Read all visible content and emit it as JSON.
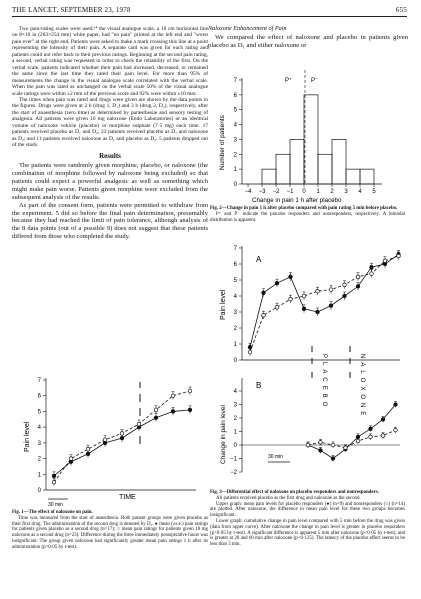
{
  "header": {
    "journal": "THE LANCET, SEPTEMBER 23, 1978",
    "page_number": "655"
  },
  "left_column": {
    "paragraphs": [
      "Two pain-rating scales were used:¹⁴ the visual analogue scale, a 10 cm horizontal line on 8×10 in (203×254 mm) white paper, had \"no pain\" printed at the left end and \"worst pain ever\" at the right end. Patients were asked to make a mark crossing this line at a point representing the intensity of their pain. A separate card was given for each rating and patients could not refer back to their previous ratings. Beginning at the second pain rating, a second, verbal rating was requested in order to check the reliability of the first. On the verbal scale, patients indicated whether their pain had increased, decreased, or remained the same since the last time they rated their pain level. For more than 95% of measurements the change in the visual analogue scale correlated with the verbal scale. When the pain was rated as unchanged on the verbal scale 50% of the visual analogue scale ratings were within ±2 mm of the previous score and 92% were within ±10 mm.",
      "The times when pain was rated and drugs were given are shown by the data points in the figures. Drugs were given at 2 h (drug 1, D₁) and 3 h (drug 2, D₂), respectively, after the start of anaesthesia (zero time) as determined by paræsthesiæ and sensory testing of analgesia. All patients were given 10 mg naloxone (Endo Laboratories) or an identical volume of naloxone vehicle (placebo) or morphine sulphate (7·5 mg) each time. 17 patients received placebo as D₁ and D₂; 23 patients received placebo as D₁ and naloxone as D₂; and 11 patients received naloxone as D₁ and placebo as D₂. 5 patients dropped out of the study."
    ],
    "results_heading": "Results",
    "results_paragraphs": [
      "The patients were randomly given morphine, placebo, or naloxone (the combination of morphine followed by naloxone being excluded) so that patients could expect a powerful analgesic as well as something which might make pain worse. Patients given morphine were excluded from the subsequent analysis of the results.",
      "As part of the consent form, patients were permitted to withdraw from the experiment. 5 did so before the final pain determination, presumably because they had reached the limit of pain tolerance, although analysis of the 8 data points (out of a possible 9) does not suggest that these patients differed from those who completed the study."
    ]
  },
  "right_column": {
    "subheading": "Naloxone Enhancement of Pain",
    "lead_paragraph": "We compared the effect of naloxone and placebo in patients given placebo as D₁ and either naloxone or"
  },
  "fig1": {
    "ylabel": "Pain level",
    "xlabel": "TIME",
    "scale_label": "30 min",
    "caption_title": "Fig. 1—The effect of naloxone on pain.",
    "caption_text": "Time was measured from the start of anaesthesia. Both patient groups were given placebo as their first drug. The administration of the second drug is denoted by D₂. ● mean (±s.e.) pain ratings for patients given placebo as a second drug (n=17); ○ mean pain ratings for patients given 10 mg naloxone as a second drug (n=23). Difference during the three immediately postoperative hours was insignificant. The group given naloxone had significantly greater mean pain ratings 1 h after its administration (p<0·05 by t-test).",
    "chart_data": {
      "type": "line",
      "ylim": [
        0,
        7
      ],
      "yticks": [
        0,
        1,
        2,
        3,
        4,
        5,
        6,
        7
      ],
      "series": [
        {
          "marker": "filled",
          "style": "solid",
          "values": [
            0.9,
            1.8,
            2.3,
            3.0,
            3.3,
            4.0,
            4.6,
            5.0,
            5.1
          ]
        },
        {
          "marker": "open",
          "style": "dashed",
          "values": [
            0.5,
            2.0,
            2.6,
            3.2,
            3.6,
            4.2,
            5.1,
            6.0,
            6.3
          ]
        }
      ]
    }
  },
  "fig2": {
    "ylabel": "Number of patients",
    "xlabel": "Change in pain 1 h after placebo",
    "p_plus_label": "P⁺",
    "p_minus_label": "P⁻",
    "caption_title": "Fig. 2—Change in pain 1 h after placebo compared with pain rating 5 min before placebo.",
    "caption_text": "P⁺ and P⁻ indicate the placebo responders and nonresponders, respectively. A bimodal distribution is apparent.",
    "chart_data": {
      "type": "bar",
      "categories": [
        "-4",
        "-3",
        "-2",
        "-1",
        "0",
        "1",
        "2",
        "3",
        "4",
        "5"
      ],
      "xticks": [
        "-4",
        "-3",
        "-2",
        "-1",
        "0",
        "1",
        "2",
        "3",
        "4",
        "5"
      ],
      "values": [
        0,
        1,
        2,
        3,
        6,
        2,
        3,
        1,
        1,
        0
      ],
      "ylim": [
        0,
        7
      ],
      "yticks": [
        0,
        1,
        2,
        3,
        4,
        5,
        6,
        7
      ]
    }
  },
  "fig3": {
    "panel_a": "A",
    "panel_b": "B",
    "ylabel_a": "Pain level",
    "ylabel_b": "Change in pain level",
    "scale_label": "30 min",
    "placebo_label": "PLACEBO",
    "naloxone_label": "NALOXONE",
    "caption_title": "Fig. 3—Differential effect of naloxone on placebo responders and nonresponders.",
    "caption_lines": [
      "All patients received placebo as the first drug and naloxone as the second.",
      "Upper graph: mean pain levels for placebo responders (●) (n=9) and nonresponders (○) (n=14) are plotted. After naloxone, the difference in mean pain level for these two groups becomes insignificant.",
      "Lower graph: cumulative change in pain level compared with 5 min before the drug was given (data from upper curve). After naloxone the change in pain level is greater in placebo responders (p<0·05 by t-test). A significant difference is apparent 5 min after naloxone (p<0·05 by t-test), and is greater at 20 and 60 min after naloxone (p<0·125). The latency of the placebo effect seems to be less than 3 min."
    ],
    "chart_data": [
      {
        "type": "line",
        "panel": "A",
        "ylim": [
          0,
          7
        ],
        "yticks": [
          0,
          1,
          2,
          3,
          4,
          5,
          6,
          7
        ],
        "series": [
          {
            "marker": "filled",
            "style": "solid",
            "values": [
              0.8,
              4.2,
              4.8,
              5.2,
              3.2,
              3.0,
              3.4,
              4.0,
              4.6,
              5.8,
              6.0,
              6.6
            ]
          },
          {
            "marker": "open",
            "style": "dashed",
            "values": [
              0.5,
              2.8,
              3.3,
              3.8,
              4.0,
              4.3,
              4.4,
              4.7,
              5.2,
              5.4,
              6.2,
              6.5
            ]
          }
        ]
      },
      {
        "type": "line",
        "panel": "B",
        "ylim": [
          -2,
          4
        ],
        "yticks": [
          -2,
          -1,
          0,
          1,
          2,
          3,
          4
        ],
        "series": [
          {
            "marker": "filled",
            "style": "solid",
            "values": [
              0.0,
              -0.4,
              -1.0,
              -0.3,
              0.6,
              1.2,
              1.9,
              3.0
            ]
          },
          {
            "marker": "open",
            "style": "dashed",
            "values": [
              0.0,
              0.2,
              0.0,
              -0.2,
              0.3,
              0.6,
              0.7,
              1.1
            ]
          }
        ]
      }
    ]
  }
}
